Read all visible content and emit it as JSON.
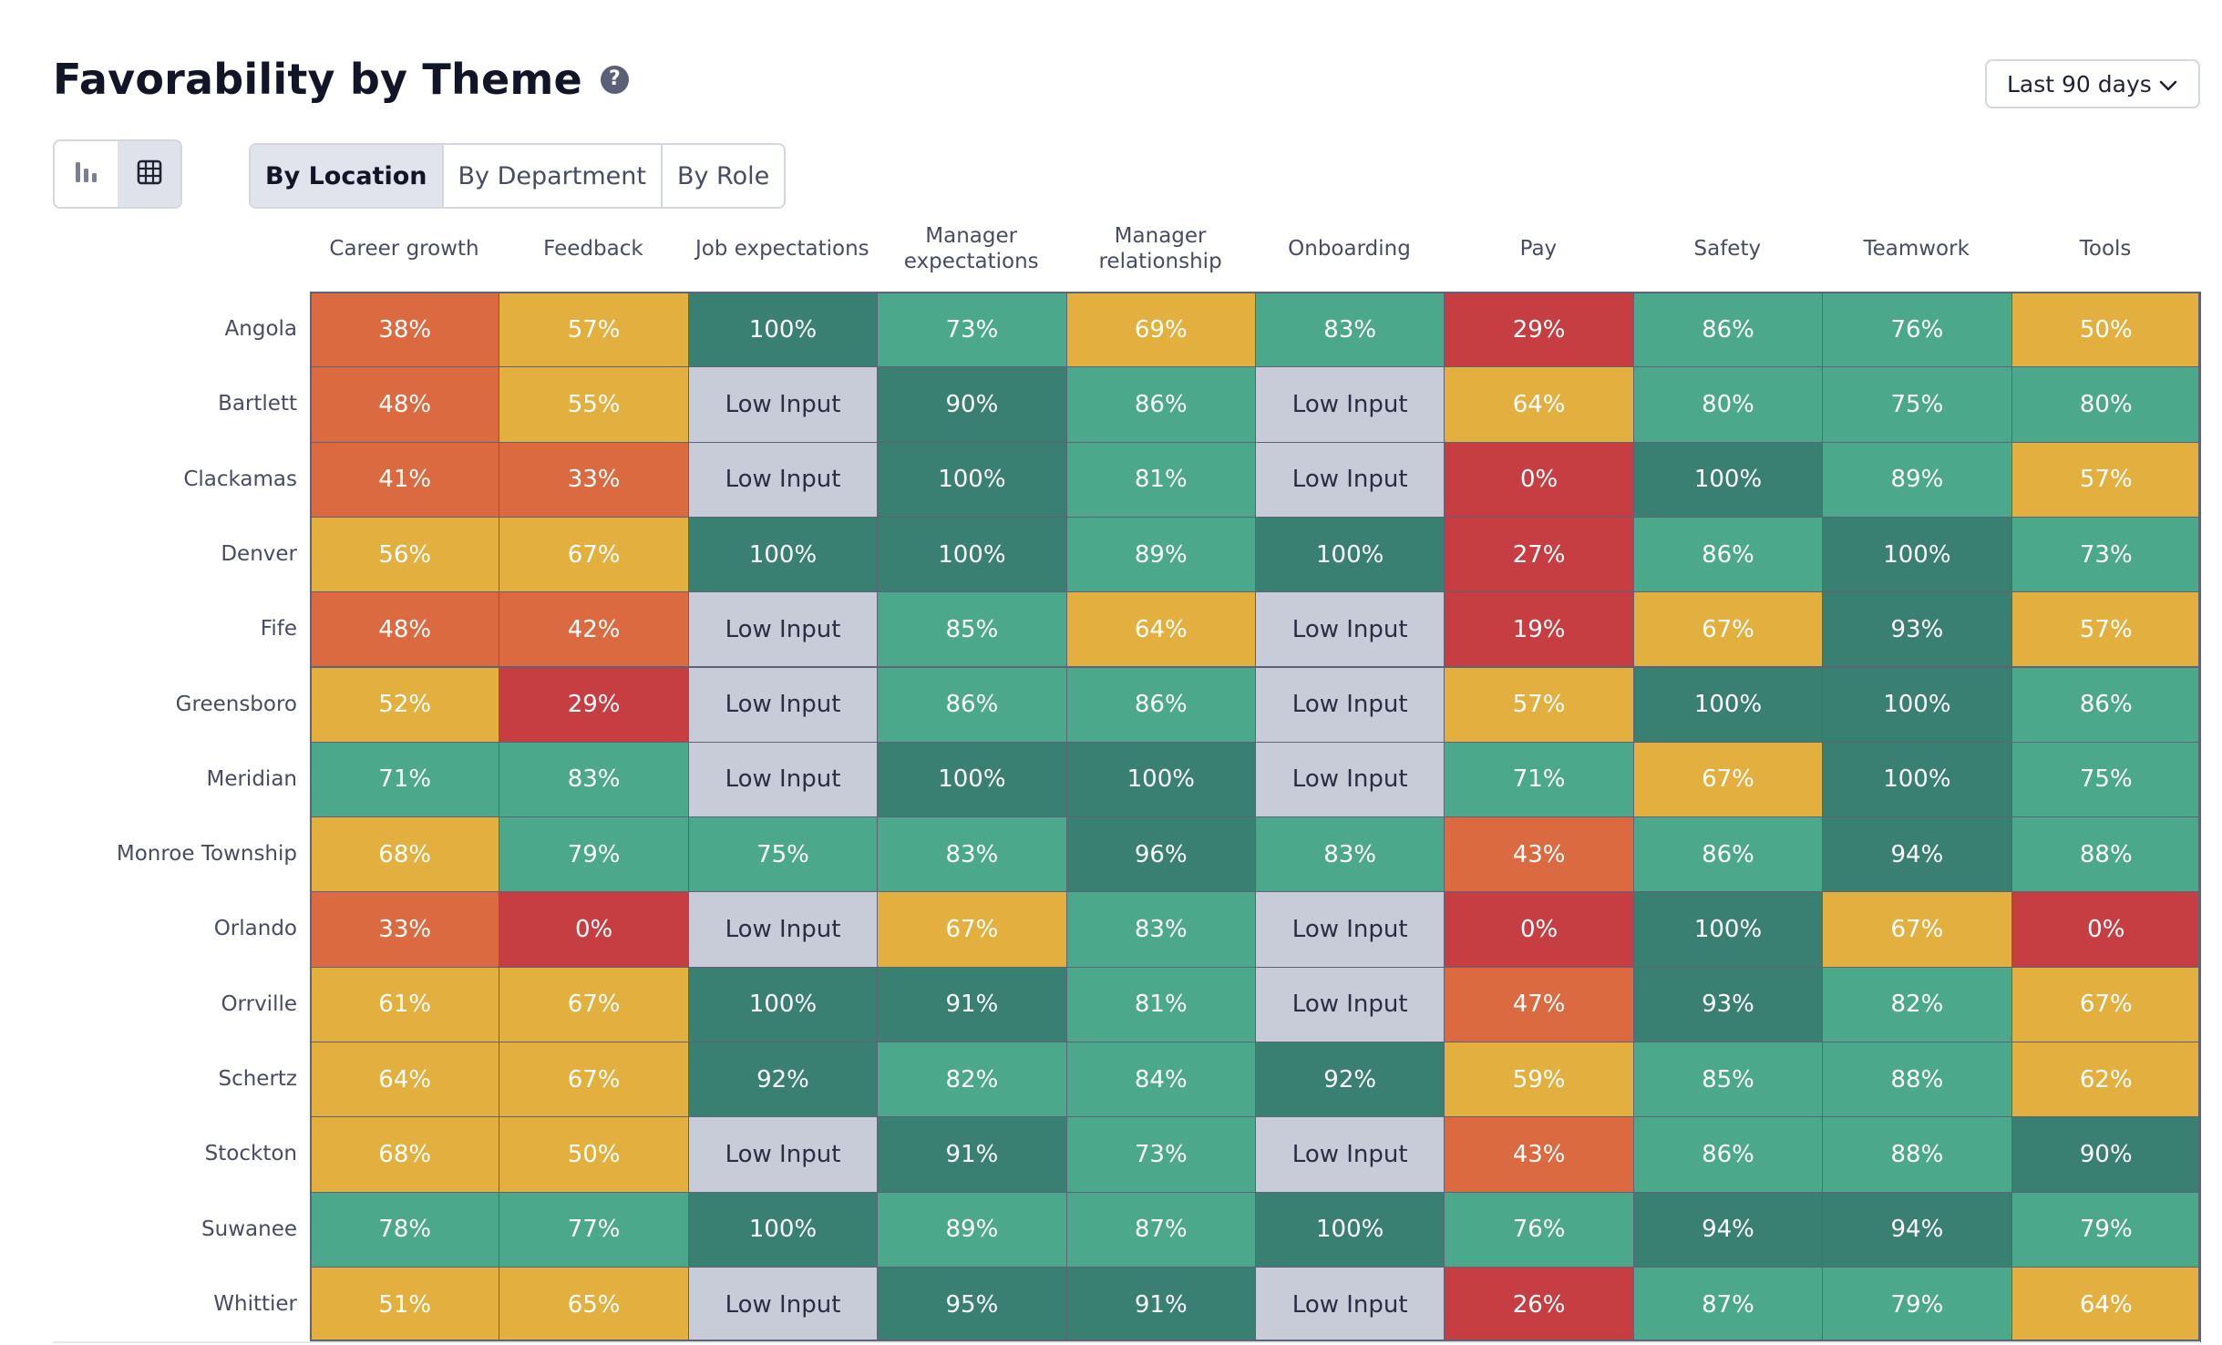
{
  "header": {
    "title": "Favorability by Theme",
    "help_icon": "?",
    "date_range": {
      "selected": "Last 90 days",
      "icon": "chevron-down-icon"
    }
  },
  "view_toggle": {
    "items": [
      {
        "icon": "bar-chart-icon",
        "active": false
      },
      {
        "icon": "table-grid-icon",
        "active": true
      }
    ]
  },
  "group_tabs": [
    {
      "label": "By Location",
      "active": true
    },
    {
      "label": "By Department",
      "active": false
    },
    {
      "label": "By Role",
      "active": false
    }
  ],
  "colors": {
    "dark_green": "#3a8072",
    "green": "#4ca88a",
    "yellow": "#e3b040",
    "orange": "#dc6a40",
    "red": "#c63d42",
    "low_input": "#c8ccd8"
  },
  "chart_data": {
    "type": "heatmap",
    "title": "Favorability by Theme",
    "columns": [
      "Career growth",
      "Feedback",
      "Job expectations",
      "Manager expectations",
      "Manager relationship",
      "Onboarding",
      "Pay",
      "Safety",
      "Teamwork",
      "Tools"
    ],
    "rows": [
      "Angola",
      "Bartlett",
      "Clackamas",
      "Denver",
      "Fife",
      "Greensboro",
      "Meridian",
      "Monroe Township",
      "Orlando",
      "Orrville",
      "Schertz",
      "Stockton",
      "Suwanee",
      "Whittier"
    ],
    "values": [
      [
        "38%",
        "57%",
        "100%",
        "73%",
        "69%",
        "83%",
        "29%",
        "86%",
        "76%",
        "50%"
      ],
      [
        "48%",
        "55%",
        "Low Input",
        "90%",
        "86%",
        "Low Input",
        "64%",
        "80%",
        "75%",
        "80%"
      ],
      [
        "41%",
        "33%",
        "Low Input",
        "100%",
        "81%",
        "Low Input",
        "0%",
        "100%",
        "89%",
        "57%"
      ],
      [
        "56%",
        "67%",
        "100%",
        "100%",
        "89%",
        "100%",
        "27%",
        "86%",
        "100%",
        "73%"
      ],
      [
        "48%",
        "42%",
        "Low Input",
        "85%",
        "64%",
        "Low Input",
        "19%",
        "67%",
        "93%",
        "57%"
      ],
      [
        "52%",
        "29%",
        "Low Input",
        "86%",
        "86%",
        "Low Input",
        "57%",
        "100%",
        "100%",
        "86%"
      ],
      [
        "71%",
        "83%",
        "Low Input",
        "100%",
        "100%",
        "Low Input",
        "71%",
        "67%",
        "100%",
        "75%"
      ],
      [
        "68%",
        "79%",
        "75%",
        "83%",
        "96%",
        "83%",
        "43%",
        "86%",
        "94%",
        "88%"
      ],
      [
        "33%",
        "0%",
        "Low Input",
        "67%",
        "83%",
        "Low Input",
        "0%",
        "100%",
        "67%",
        "0%"
      ],
      [
        "61%",
        "67%",
        "100%",
        "91%",
        "81%",
        "Low Input",
        "47%",
        "93%",
        "82%",
        "67%"
      ],
      [
        "64%",
        "67%",
        "92%",
        "82%",
        "84%",
        "92%",
        "59%",
        "85%",
        "88%",
        "62%"
      ],
      [
        "68%",
        "50%",
        "Low Input",
        "91%",
        "73%",
        "Low Input",
        "43%",
        "86%",
        "88%",
        "90%"
      ],
      [
        "78%",
        "77%",
        "100%",
        "89%",
        "87%",
        "100%",
        "76%",
        "94%",
        "94%",
        "79%"
      ],
      [
        "51%",
        "65%",
        "Low Input",
        "95%",
        "91%",
        "Low Input",
        "26%",
        "87%",
        "79%",
        "64%"
      ]
    ],
    "levels": [
      [
        "orange",
        "yellow",
        "dark_green",
        "green",
        "yellow",
        "green",
        "red",
        "green",
        "green",
        "yellow"
      ],
      [
        "orange",
        "yellow",
        "low_input",
        "dark_green",
        "green",
        "low_input",
        "yellow",
        "green",
        "green",
        "green"
      ],
      [
        "orange",
        "orange",
        "low_input",
        "dark_green",
        "green",
        "low_input",
        "red",
        "dark_green",
        "green",
        "yellow"
      ],
      [
        "yellow",
        "yellow",
        "dark_green",
        "dark_green",
        "green",
        "dark_green",
        "red",
        "green",
        "dark_green",
        "green"
      ],
      [
        "orange",
        "orange",
        "low_input",
        "green",
        "yellow",
        "low_input",
        "red",
        "yellow",
        "dark_green",
        "yellow"
      ],
      [
        "yellow",
        "red",
        "low_input",
        "green",
        "green",
        "low_input",
        "yellow",
        "dark_green",
        "dark_green",
        "green"
      ],
      [
        "green",
        "green",
        "low_input",
        "dark_green",
        "dark_green",
        "low_input",
        "green",
        "yellow",
        "dark_green",
        "green"
      ],
      [
        "yellow",
        "green",
        "green",
        "green",
        "dark_green",
        "green",
        "orange",
        "green",
        "dark_green",
        "green"
      ],
      [
        "orange",
        "red",
        "low_input",
        "yellow",
        "green",
        "low_input",
        "red",
        "dark_green",
        "yellow",
        "red"
      ],
      [
        "yellow",
        "yellow",
        "dark_green",
        "dark_green",
        "green",
        "low_input",
        "orange",
        "dark_green",
        "green",
        "yellow"
      ],
      [
        "yellow",
        "yellow",
        "dark_green",
        "green",
        "green",
        "dark_green",
        "yellow",
        "green",
        "green",
        "yellow"
      ],
      [
        "yellow",
        "yellow",
        "low_input",
        "dark_green",
        "green",
        "low_input",
        "orange",
        "green",
        "green",
        "dark_green"
      ],
      [
        "green",
        "green",
        "dark_green",
        "green",
        "green",
        "dark_green",
        "green",
        "dark_green",
        "dark_green",
        "green"
      ],
      [
        "yellow",
        "yellow",
        "low_input",
        "dark_green",
        "dark_green",
        "low_input",
        "red",
        "green",
        "green",
        "yellow"
      ]
    ],
    "legend": "none",
    "grid": true
  }
}
